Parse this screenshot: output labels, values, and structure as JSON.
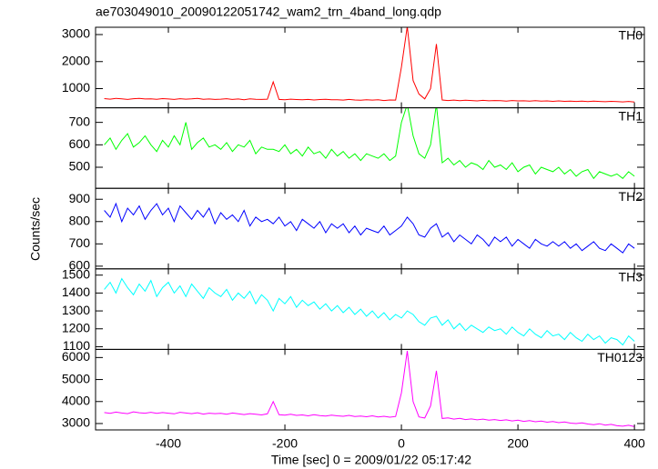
{
  "chart_data": {
    "type": "line",
    "title": "ae703049010_20090122051742_wam2_trn_4band_long.qdp",
    "xlabel": "Time [sec] 0 = 2009/01/22 05:17:42",
    "ylabel": "Counts/sec",
    "xlim": [
      -525,
      417
    ],
    "xticks": [
      -400,
      -200,
      0,
      200,
      400
    ],
    "grid": false,
    "x": [
      -510,
      -500,
      -490,
      -480,
      -470,
      -460,
      -450,
      -440,
      -430,
      -420,
      -410,
      -400,
      -390,
      -380,
      -370,
      -360,
      -350,
      -340,
      -330,
      -320,
      -310,
      -300,
      -290,
      -280,
      -270,
      -260,
      -250,
      -240,
      -230,
      -220,
      -210,
      -200,
      -190,
      -180,
      -170,
      -160,
      -150,
      -140,
      -130,
      -120,
      -110,
      -100,
      -90,
      -80,
      -70,
      -60,
      -50,
      -40,
      -30,
      -20,
      -10,
      0,
      10,
      20,
      30,
      40,
      50,
      60,
      70,
      80,
      90,
      100,
      110,
      120,
      130,
      140,
      150,
      160,
      170,
      180,
      190,
      200,
      210,
      220,
      230,
      240,
      250,
      260,
      270,
      280,
      290,
      300,
      310,
      320,
      330,
      340,
      350,
      360,
      370,
      380,
      390,
      400
    ],
    "series": [
      {
        "name": "TH0",
        "color": "#ff0000",
        "ylim": [
          290,
          3270
        ],
        "yticks": [
          1000,
          2000,
          3000
        ],
        "values": [
          630,
          610,
          640,
          620,
          600,
          625,
          635,
          615,
          620,
          605,
          630,
          615,
          600,
          625,
          610,
          620,
          640,
          605,
          615,
          600,
          610,
          625,
          600,
          615,
          590,
          620,
          605,
          600,
          610,
          1250,
          600,
          590,
          610,
          595,
          585,
          600,
          580,
          595,
          605,
          585,
          590,
          575,
          600,
          580,
          570,
          590,
          575,
          585,
          560,
          580,
          575,
          1800,
          3300,
          1300,
          800,
          620,
          1000,
          2650,
          580,
          560,
          575,
          555,
          570,
          560,
          545,
          565,
          550,
          560,
          555,
          540,
          560,
          545,
          550,
          535,
          555,
          540,
          545,
          530,
          545,
          530,
          540,
          525,
          535,
          520,
          540,
          525,
          515,
          530,
          520,
          510,
          525,
          505
        ]
      },
      {
        "name": "TH1",
        "color": "#00ff00",
        "ylim": [
          406,
          765
        ],
        "yticks": [
          500,
          600,
          700
        ],
        "values": [
          600,
          630,
          580,
          620,
          650,
          590,
          610,
          640,
          600,
          570,
          620,
          590,
          640,
          600,
          700,
          580,
          610,
          630,
          590,
          600,
          580,
          610,
          570,
          600,
          590,
          620,
          560,
          590,
          580,
          580,
          570,
          600,
          560,
          580,
          550,
          590,
          560,
          570,
          540,
          580,
          550,
          570,
          540,
          560,
          530,
          560,
          550,
          540,
          560,
          530,
          550,
          700,
          780,
          640,
          560,
          540,
          600,
          780,
          520,
          540,
          510,
          530,
          500,
          520,
          510,
          490,
          530,
          500,
          510,
          490,
          520,
          480,
          500,
          510,
          470,
          500,
          490,
          480,
          500,
          470,
          490,
          460,
          480,
          490,
          450,
          480,
          470,
          460,
          470,
          450,
          480,
          460
        ]
      },
      {
        "name": "TH2",
        "color": "#0000ff",
        "ylim": [
          588,
          949
        ],
        "yticks": [
          600,
          700,
          800,
          900
        ],
        "values": [
          850,
          820,
          880,
          800,
          860,
          830,
          870,
          810,
          850,
          880,
          830,
          860,
          800,
          870,
          840,
          810,
          850,
          820,
          860,
          790,
          840,
          810,
          830,
          800,
          850,
          780,
          820,
          800,
          810,
          790,
          820,
          780,
          800,
          760,
          810,
          790,
          770,
          800,
          750,
          790,
          770,
          790,
          750,
          780,
          740,
          770,
          760,
          750,
          780,
          740,
          760,
          780,
          820,
          790,
          740,
          730,
          770,
          790,
          730,
          750,
          710,
          740,
          720,
          700,
          740,
          720,
          690,
          730,
          710,
          730,
          690,
          720,
          700,
          680,
          720,
          700,
          690,
          710,
          690,
          710,
          680,
          700,
          670,
          690,
          710,
          680,
          670,
          700,
          680,
          660,
          700,
          680
        ]
      },
      {
        "name": "TH3",
        "color": "#00ffff",
        "ylim": [
          1085,
          1535
        ],
        "yticks": [
          1100,
          1200,
          1300,
          1400,
          1500
        ],
        "values": [
          1420,
          1460,
          1400,
          1480,
          1430,
          1390,
          1450,
          1410,
          1470,
          1380,
          1430,
          1460,
          1400,
          1440,
          1380,
          1450,
          1410,
          1370,
          1430,
          1400,
          1380,
          1420,
          1360,
          1400,
          1370,
          1410,
          1340,
          1390,
          1360,
          1300,
          1370,
          1340,
          1380,
          1320,
          1360,
          1330,
          1350,
          1310,
          1340,
          1300,
          1330,
          1290,
          1320,
          1280,
          1310,
          1270,
          1300,
          1260,
          1290,
          1250,
          1280,
          1260,
          1300,
          1280,
          1240,
          1220,
          1260,
          1270,
          1220,
          1250,
          1200,
          1230,
          1190,
          1220,
          1200,
          1180,
          1210,
          1190,
          1200,
          1170,
          1210,
          1180,
          1160,
          1200,
          1170,
          1150,
          1190,
          1160,
          1170,
          1140,
          1180,
          1150,
          1130,
          1170,
          1140,
          1160,
          1120,
          1150,
          1140,
          1110,
          1160,
          1130
        ]
      },
      {
        "name": "TH0123",
        "color": "#ff00ff",
        "ylim": [
          2710,
          6370
        ],
        "yticks": [
          3000,
          4000,
          5000,
          6000
        ],
        "values": [
          3500,
          3460,
          3520,
          3480,
          3450,
          3530,
          3490,
          3470,
          3510,
          3460,
          3500,
          3470,
          3440,
          3510,
          3480,
          3450,
          3490,
          3430,
          3470,
          3450,
          3460,
          3420,
          3480,
          3440,
          3410,
          3450,
          3420,
          3390,
          3440,
          4000,
          3400,
          3380,
          3420,
          3370,
          3390,
          3350,
          3400,
          3360,
          3340,
          3380,
          3350,
          3330,
          3370,
          3320,
          3340,
          3310,
          3350,
          3300,
          3330,
          3290,
          3320,
          4400,
          6300,
          4000,
          3300,
          3250,
          3800,
          5400,
          3230,
          3260,
          3200,
          3240,
          3180,
          3210,
          3170,
          3200,
          3150,
          3180,
          3140,
          3170,
          3120,
          3150,
          3100,
          3130,
          3080,
          3110,
          3060,
          3090,
          3040,
          3070,
          3020,
          3000,
          3030,
          2980,
          2950,
          2990,
          2930,
          2960,
          2900,
          2880,
          2920,
          2860
        ]
      }
    ]
  }
}
